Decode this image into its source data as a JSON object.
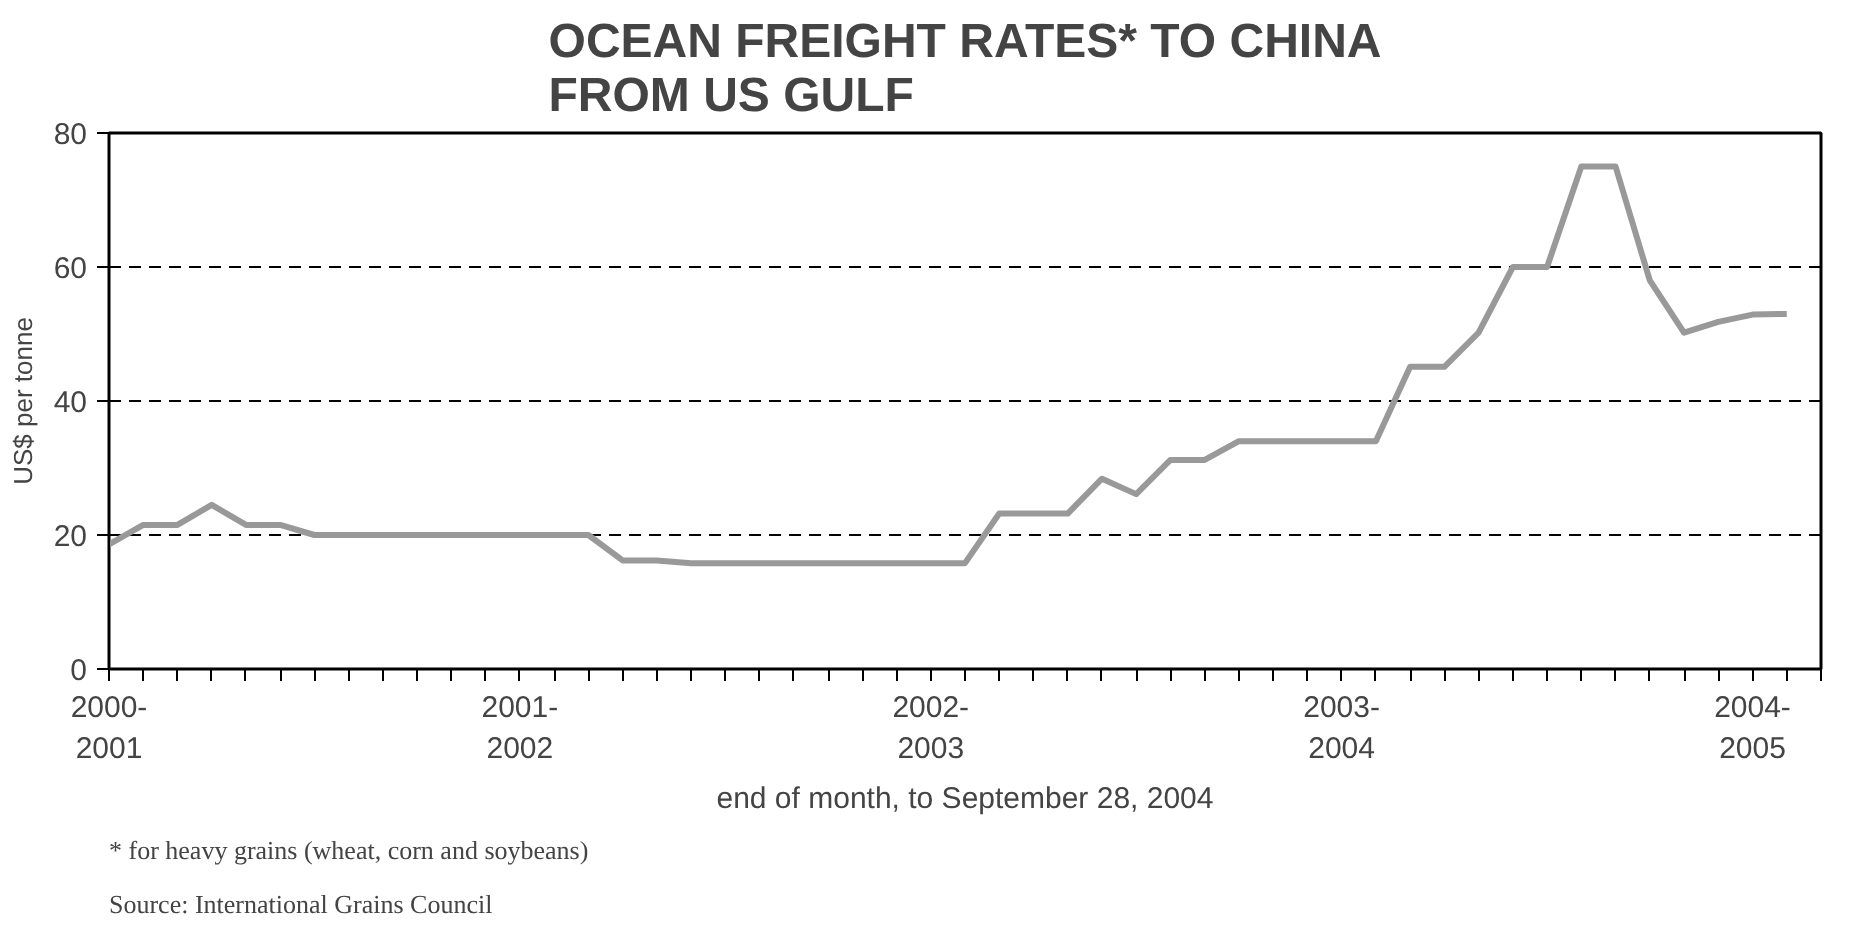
{
  "chart_data": {
    "type": "line",
    "title": "OCEAN FREIGHT RATES* TO CHINA\nFROM US GULF",
    "xlabel": "end of month, to September 28, 2004",
    "ylabel": "US$ per tonne",
    "categories": [
      "2000-\n2001",
      null,
      null,
      null,
      null,
      null,
      null,
      null,
      null,
      null,
      null,
      null,
      "2001-\n2002",
      null,
      null,
      null,
      null,
      null,
      null,
      null,
      null,
      null,
      null,
      null,
      "2002-\n2003",
      null,
      null,
      null,
      null,
      null,
      null,
      null,
      null,
      null,
      null,
      null,
      "2003-\n2004",
      null,
      null,
      null,
      null,
      null,
      null,
      null,
      null,
      null,
      null,
      null,
      "2004-\n2005",
      null
    ],
    "series": [
      {
        "color": "#999999",
        "values": [
          18.6,
          21.5,
          21.5,
          24.5,
          21.5,
          21.5,
          20,
          20,
          20,
          20,
          20,
          20,
          20,
          20,
          20,
          16.2,
          16.2,
          15.8,
          15.8,
          15.8,
          15.8,
          15.8,
          15.8,
          15.8,
          15.8,
          15.8,
          23.2,
          23.2,
          23.2,
          28.4,
          26.1,
          31.2,
          31.2,
          34,
          34,
          34,
          34,
          34,
          45.1,
          45.1,
          50.2,
          60,
          60,
          75,
          75,
          58,
          50.2,
          51.8,
          52.9,
          53
        ]
      }
    ],
    "ylim": [
      0,
      80
    ],
    "yticks": [
      0,
      20,
      40,
      60,
      80
    ],
    "grid": "y",
    "marker": "none",
    "line_style": "solid",
    "annotations": [
      "* for heavy grains (wheat, corn and soybeans)",
      "Source: International Grains Council"
    ]
  }
}
